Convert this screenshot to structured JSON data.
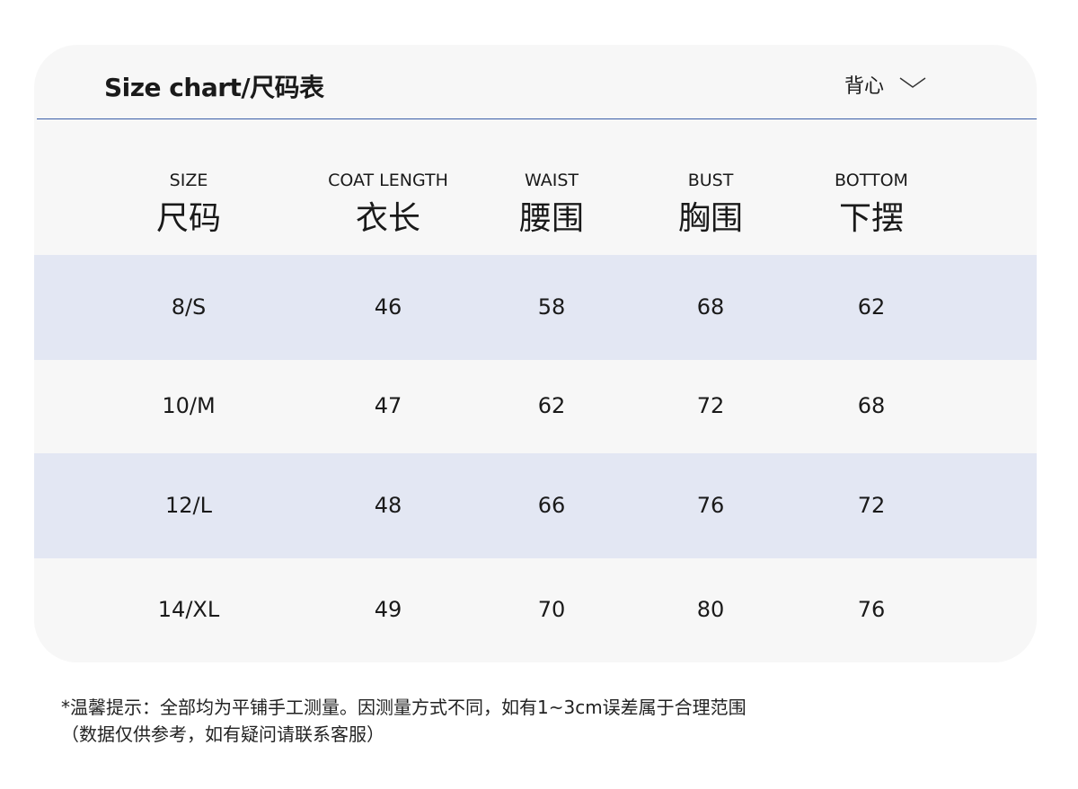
{
  "header": {
    "title": "Size chart/尺码表",
    "category": "背心"
  },
  "table": {
    "columns": [
      {
        "en": "SIZE",
        "zh": "尺码"
      },
      {
        "en": "COAT LENGTH",
        "zh": "衣长"
      },
      {
        "en": "WAIST",
        "zh": "腰围"
      },
      {
        "en": "BUST",
        "zh": "胸围"
      },
      {
        "en": "BOTTOM",
        "zh": "下摆"
      }
    ],
    "rows": [
      [
        "8/S",
        46,
        58,
        68,
        62
      ],
      [
        "10/M",
        47,
        62,
        72,
        68
      ],
      [
        "12/L",
        48,
        66,
        76,
        72
      ],
      [
        "14/XL",
        49,
        70,
        80,
        76
      ]
    ]
  },
  "notes": [
    "*温馨提示：全部均为平铺手工测量。因测量方式不同，如有1~3cm误差属于合理范围",
    "（数据仅供参考，如有疑问请联系客服）"
  ]
}
